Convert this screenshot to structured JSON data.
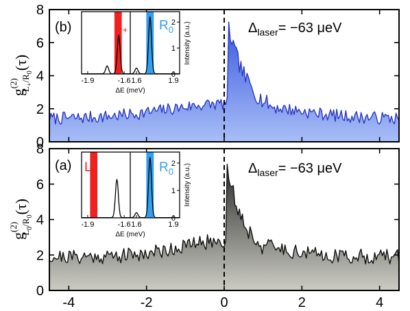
{
  "chart_data": [
    {
      "type": "area",
      "panel_label": "(b)",
      "ylabel_main": "g",
      "ylabel_sup": "(2)",
      "ylabel_sub_a": "L",
      "ylabel_sub_sign": "+",
      "ylabel_sub_b": "/R",
      "ylabel_sub_c": "0",
      "ylabel_arg": "(τ)",
      "annotation_prefix": "Δ",
      "annotation_sub": "laser",
      "annotation_value": "= −63 μeV",
      "xlim": [
        -4.5,
        4.5
      ],
      "ylim": [
        0,
        8
      ],
      "x_ticks": [
        -4,
        -2,
        0,
        2,
        4
      ],
      "y_ticks": [
        0,
        2,
        4,
        6,
        8
      ],
      "x_tick_labels": [
        "-4",
        "-2",
        "0",
        "2",
        "4"
      ],
      "y_tick_labels": [
        "0",
        "2",
        "4",
        "6",
        "8"
      ],
      "line_color": "#2a38c0",
      "fill_top_color": "#3858e0",
      "fill_bottom_color": "#a8bef6",
      "center": 0.1,
      "peak": 7.0,
      "decay": 0.55,
      "baseline": 1.4,
      "wing": 0.9,
      "wing_width": 1.6,
      "noise": 0.38,
      "seed": 7,
      "x": [
        -4.5,
        -4.0,
        -3.5,
        -3.0,
        -2.5,
        -2.0,
        -1.5,
        -1.0,
        -0.5,
        -0.2,
        0.0,
        0.1,
        0.2,
        0.4,
        0.6,
        0.8,
        1.0,
        1.5,
        2.0,
        2.5,
        3.0,
        3.5,
        4.0,
        4.5
      ],
      "y": [
        1.3,
        1.4,
        1.6,
        1.5,
        1.7,
        1.6,
        1.8,
        2.1,
        2.6,
        2.9,
        3.2,
        7.0,
        6.6,
        5.5,
        4.8,
        4.1,
        3.7,
        3.0,
        2.3,
        2.0,
        1.7,
        1.5,
        1.4,
        1.4
      ],
      "inset": {
        "xlabel": "ΔE (meV)",
        "ylabel": "Intensity (a.u.)",
        "x_tick_labels": [
          "-1.9",
          "-1.6",
          "1.6",
          "1.9"
        ],
        "y_tick_labels": [
          "0",
          "1",
          "2"
        ],
        "left_label_main": "L",
        "left_label_sub": "+",
        "right_label_main": "R",
        "right_label_sub": "0",
        "left_color": "#f02020",
        "right_color": "#30a0f0",
        "left_band": [
          -1.68,
          -1.62
        ],
        "right_band": [
          1.68,
          1.74
        ],
        "left_peak_x": -1.645,
        "right_peak_x": 1.71,
        "left_peak_height": 1.5,
        "right_peak_height": 2.2,
        "small_peaks": [
          [
            -1.74,
            0.3
          ],
          [
            1.6,
            0.22
          ]
        ],
        "ylim": [
          0,
          2.4
        ]
      }
    },
    {
      "type": "area",
      "panel_label": "(a)",
      "ylabel_main": "g",
      "ylabel_sup": "(2)",
      "ylabel_sub_a": "L",
      "ylabel_sub_sign": "0",
      "ylabel_sub_b": "/R",
      "ylabel_sub_c": "0",
      "ylabel_arg": "(τ)",
      "annotation_prefix": "Δ",
      "annotation_sub": "laser",
      "annotation_value": "= −63 μeV",
      "xlim": [
        -4.5,
        4.5
      ],
      "ylim": [
        0,
        8
      ],
      "x_ticks": [
        -4,
        -2,
        0,
        2,
        4
      ],
      "y_ticks": [
        0,
        2,
        4,
        6,
        8
      ],
      "x_tick_labels": [
        "-4",
        "-2",
        "0",
        "2",
        "4"
      ],
      "y_tick_labels": [
        "0",
        "2",
        "4",
        "6",
        "8"
      ],
      "line_color": "#111111",
      "fill_top_color": "#2a2a2a",
      "fill_bottom_color": "#ccccc4",
      "center": 0.05,
      "peak": 7.3,
      "decay": 0.45,
      "baseline": 1.9,
      "wing": 0.9,
      "wing_width": 1.2,
      "noise": 0.42,
      "seed": 21,
      "x": [
        -4.5,
        -4.0,
        -3.5,
        -3.0,
        -2.5,
        -2.0,
        -1.5,
        -1.0,
        -0.5,
        -0.2,
        0.0,
        0.1,
        0.2,
        0.4,
        0.6,
        0.8,
        1.0,
        1.5,
        2.0,
        2.5,
        3.0,
        3.5,
        4.0,
        4.5
      ],
      "y": [
        1.9,
        2.0,
        2.2,
        2.0,
        2.3,
        2.1,
        2.0,
        2.4,
        2.9,
        3.4,
        4.2,
        7.3,
        6.8,
        5.6,
        4.7,
        3.8,
        3.3,
        2.4,
        2.0,
        1.9,
        1.8,
        1.9,
        2.0,
        1.9
      ],
      "inset": {
        "xlabel": "ΔE (meV)",
        "ylabel": "Intensity (a.u.)",
        "x_tick_labels": [
          "-1.9",
          "-1.6",
          "1.6",
          "1.9"
        ],
        "y_tick_labels": [
          "0",
          "1",
          "2"
        ],
        "left_label_main": "L",
        "left_label_sub": "0",
        "right_label_main": "R",
        "right_label_sub": "0",
        "left_color": "#f02020",
        "right_color": "#30a0f0",
        "left_band": [
          -1.88,
          -1.82
        ],
        "right_band": [
          1.68,
          1.74
        ],
        "left_peak_x": -1.66,
        "right_peak_x": 1.71,
        "left_peak_height": 1.4,
        "right_peak_height": 2.2,
        "small_peaks": [
          [
            1.6,
            0.18
          ]
        ],
        "ylim": [
          0,
          2.4
        ]
      }
    }
  ]
}
